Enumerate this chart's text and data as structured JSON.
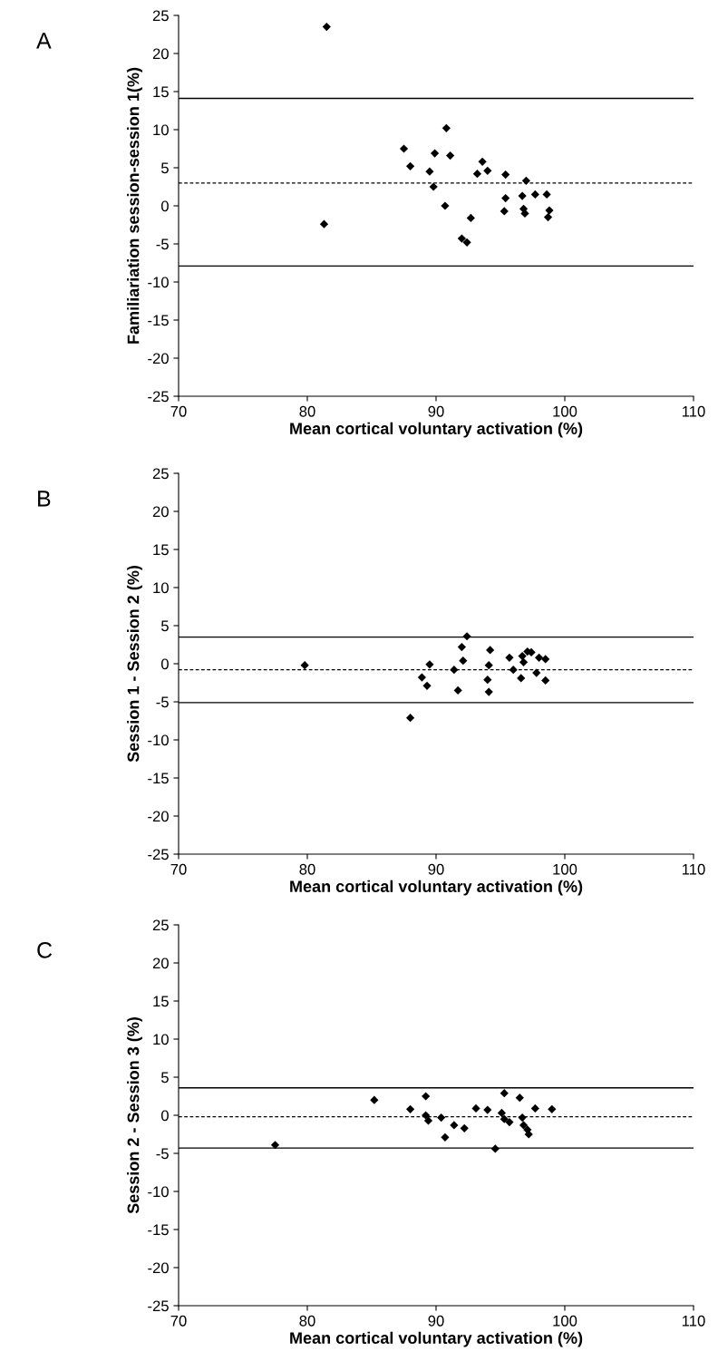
{
  "chart_data": [
    {
      "type": "scatter",
      "xlabel": "Mean cortical voluntary activation (%)",
      "ylabel": "Familiariation session-session 1(%)",
      "annotations": [
        "A"
      ],
      "marker": "diamond",
      "grid": false,
      "x": [
        81.5,
        81.3,
        87.5,
        88.0,
        89.9,
        89.5,
        89.8,
        90.8,
        91.1,
        90.7,
        92.7,
        92.0,
        92.4,
        93.2,
        93.6,
        94.0,
        95.4,
        95.4,
        95.3,
        97.0,
        96.7,
        96.8,
        96.9,
        97.7,
        98.6,
        98.8,
        98.7
      ],
      "series": [
        {
          "color": "#000000",
          "values": [
            23.5,
            -2.4,
            7.5,
            5.2,
            6.9,
            4.5,
            2.5,
            10.2,
            6.6,
            0.0,
            -1.6,
            -4.3,
            -4.8,
            4.2,
            5.8,
            4.6,
            4.1,
            1.0,
            -0.7,
            3.3,
            1.3,
            -0.4,
            -1.0,
            1.5,
            1.5,
            -0.6,
            -1.5
          ]
        }
      ],
      "xlim": [
        70,
        110
      ],
      "xticks": [
        70,
        80,
        90,
        100,
        110
      ],
      "ylim": [
        -25,
        25
      ],
      "yticks": [
        -25,
        -20,
        -15,
        -10,
        -5,
        0,
        5,
        10,
        15,
        20,
        25
      ],
      "ref_lines": [
        {
          "axis": "y",
          "value": 14.1,
          "line_style": "solid",
          "color": "#000000"
        },
        {
          "axis": "y",
          "value": 3.0,
          "line_style": "dashed",
          "color": "#000000"
        },
        {
          "axis": "y",
          "value": -7.9,
          "line_style": "solid",
          "color": "#000000"
        }
      ]
    },
    {
      "type": "scatter",
      "xlabel": "Mean cortical voluntary activation (%)",
      "ylabel": "Session 1 - Session 2 (%)",
      "annotations": [
        "B"
      ],
      "marker": "diamond",
      "grid": false,
      "x": [
        79.8,
        88.0,
        88.9,
        89.3,
        89.5,
        91.4,
        91.7,
        92.0,
        92.1,
        92.4,
        94.2,
        94.1,
        94.0,
        94.1,
        95.7,
        96.0,
        96.6,
        96.7,
        97.1,
        97.4,
        97.8,
        98.0,
        98.5,
        98.5,
        96.8
      ],
      "series": [
        {
          "color": "#000000",
          "values": [
            -0.2,
            -7.1,
            -1.8,
            -2.9,
            -0.1,
            -0.8,
            -3.5,
            2.2,
            0.4,
            3.6,
            1.8,
            -0.2,
            -2.1,
            -3.7,
            0.8,
            -0.8,
            -1.9,
            1.0,
            1.6,
            1.5,
            -1.2,
            0.8,
            0.6,
            -2.2,
            0.2
          ]
        }
      ],
      "xlim": [
        70,
        110
      ],
      "xticks": [
        70,
        80,
        90,
        100,
        110
      ],
      "ylim": [
        -25,
        25
      ],
      "yticks": [
        -25,
        -20,
        -15,
        -10,
        -5,
        0,
        5,
        10,
        15,
        20,
        25
      ],
      "ref_lines": [
        {
          "axis": "y",
          "value": 3.5,
          "line_style": "solid",
          "color": "#000000"
        },
        {
          "axis": "y",
          "value": -0.8,
          "line_style": "dashed",
          "color": "#000000"
        },
        {
          "axis": "y",
          "value": -5.1,
          "line_style": "solid",
          "color": "#000000"
        }
      ]
    },
    {
      "type": "scatter",
      "xlabel": "Mean cortical voluntary activation (%)",
      "ylabel": "Session 2 - Session 3 (%)",
      "annotations": [
        "C"
      ],
      "marker": "diamond",
      "grid": false,
      "x": [
        77.5,
        85.2,
        89.2,
        88.0,
        89.2,
        89.4,
        90.4,
        90.7,
        91.4,
        92.2,
        93.1,
        94.0,
        94.6,
        95.3,
        96.5,
        95.1,
        95.3,
        95.7,
        96.7,
        96.8,
        97.1,
        97.2,
        97.7,
        99.0
      ],
      "series": [
        {
          "color": "#000000",
          "values": [
            -3.9,
            2.0,
            2.5,
            0.8,
            0.0,
            -0.7,
            -0.3,
            -2.9,
            -1.3,
            -1.7,
            0.9,
            0.7,
            -4.4,
            2.9,
            2.3,
            0.3,
            -0.5,
            -0.9,
            -0.3,
            -1.3,
            -1.9,
            -2.5,
            0.9,
            0.8
          ]
        }
      ],
      "xlim": [
        70,
        110
      ],
      "xticks": [
        70,
        80,
        90,
        100,
        110
      ],
      "ylim": [
        -25,
        25
      ],
      "yticks": [
        -25,
        -20,
        -15,
        -10,
        -5,
        0,
        5,
        10,
        15,
        20,
        25
      ],
      "ref_lines": [
        {
          "axis": "y",
          "value": 3.6,
          "line_style": "solid",
          "color": "#000000"
        },
        {
          "axis": "y",
          "value": -0.2,
          "line_style": "dashed",
          "color": "#000000"
        },
        {
          "axis": "y",
          "value": -4.3,
          "line_style": "solid",
          "color": "#000000"
        }
      ]
    }
  ]
}
